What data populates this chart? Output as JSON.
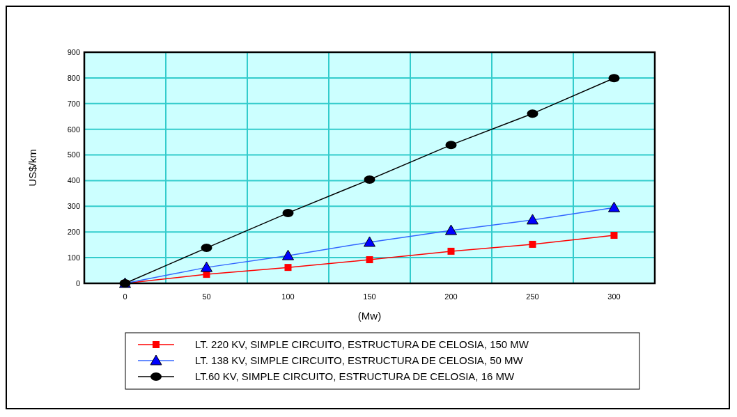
{
  "chart_data": {
    "type": "line",
    "xlabel": "(Mw)",
    "ylabel": "US$/km",
    "categories": [
      "0",
      "50",
      "100",
      "150",
      "200",
      "250",
      "300"
    ],
    "ylim": [
      0,
      900
    ],
    "yticks": [
      0,
      100,
      200,
      300,
      400,
      500,
      600,
      700,
      800,
      900
    ],
    "grid": true,
    "legend": "bottom",
    "series": [
      {
        "name": "LT. 220 KV, SIMPLE CIRCUITO, ESTRUCTURA DE CELOSIA, 150 MW",
        "color": "#ff0000",
        "marker": "square",
        "values": [
          0,
          35,
          62,
          92,
          125,
          152,
          187
        ]
      },
      {
        "name": "LT. 138 KV, SIMPLE CIRCUITO, ESTRUCTURA DE CELOSIA, 50 MW",
        "color": "#0000ff",
        "marker": "triangle",
        "values": [
          0,
          62,
          108,
          160,
          206,
          247,
          295
        ]
      },
      {
        "name": "LT.60 KV, SIMPLE CIRCUITO, ESTRUCTURA DE CELOSIA, 16 MW",
        "color": "#000000",
        "marker": "circle",
        "values": [
          0,
          138,
          274,
          404,
          539,
          661,
          799
        ]
      }
    ]
  }
}
